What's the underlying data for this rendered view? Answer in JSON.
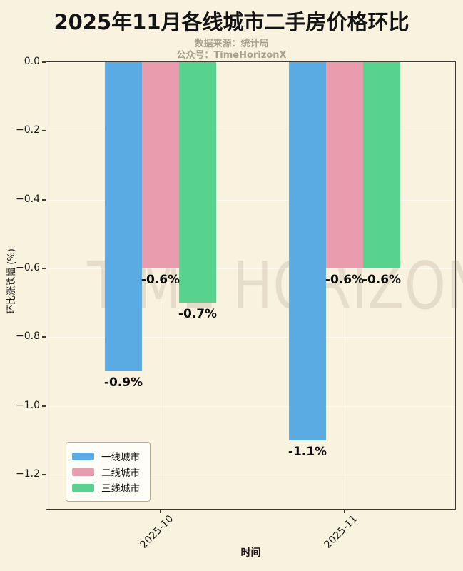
{
  "title": "2025年11月各线城市二手房价格环比",
  "subtitle_line1": "数据来源：统计局",
  "subtitle_line2": "公众号：TimeHorizonX",
  "watermark": "TIME HORIZON",
  "colors": {
    "background": "#f9f2de",
    "axis": "#3f3a30",
    "subtitle_text": "#a89f8c",
    "series_blue": "#5aabe4",
    "series_pink": "#e89cae",
    "series_green": "#57d38e"
  },
  "chart_data": {
    "type": "bar",
    "title": "2025年11月各线城市二手房价格环比",
    "categories": [
      "2025-10",
      "2025-11"
    ],
    "series": [
      {
        "name": "一线城市",
        "color": "#5aabe4",
        "values": [
          -0.9,
          -1.1
        ]
      },
      {
        "name": "二线城市",
        "color": "#e89cae",
        "values": [
          -0.6,
          -0.6
        ]
      },
      {
        "name": "三线城市",
        "color": "#57d38e",
        "values": [
          -0.7,
          -0.6
        ]
      }
    ],
    "value_labels": [
      [
        "-0.9%",
        "-0.6%",
        "-0.7%"
      ],
      [
        "-1.1%",
        "-0.6%",
        "-0.6%"
      ]
    ],
    "xlabel": "时间",
    "ylabel": "环比涨跌幅 (%)",
    "ylim": [
      -1.3,
      0
    ],
    "ytick_values": [
      0.0,
      -0.2,
      -0.4,
      -0.6,
      -0.8,
      -1.0,
      -1.2
    ],
    "ytick_labels": [
      "0.0",
      "−0.2",
      "−0.4",
      "−0.6",
      "−0.8",
      "−1.0",
      "−1.2"
    ],
    "grid": true,
    "legend_position": "lower-left"
  }
}
